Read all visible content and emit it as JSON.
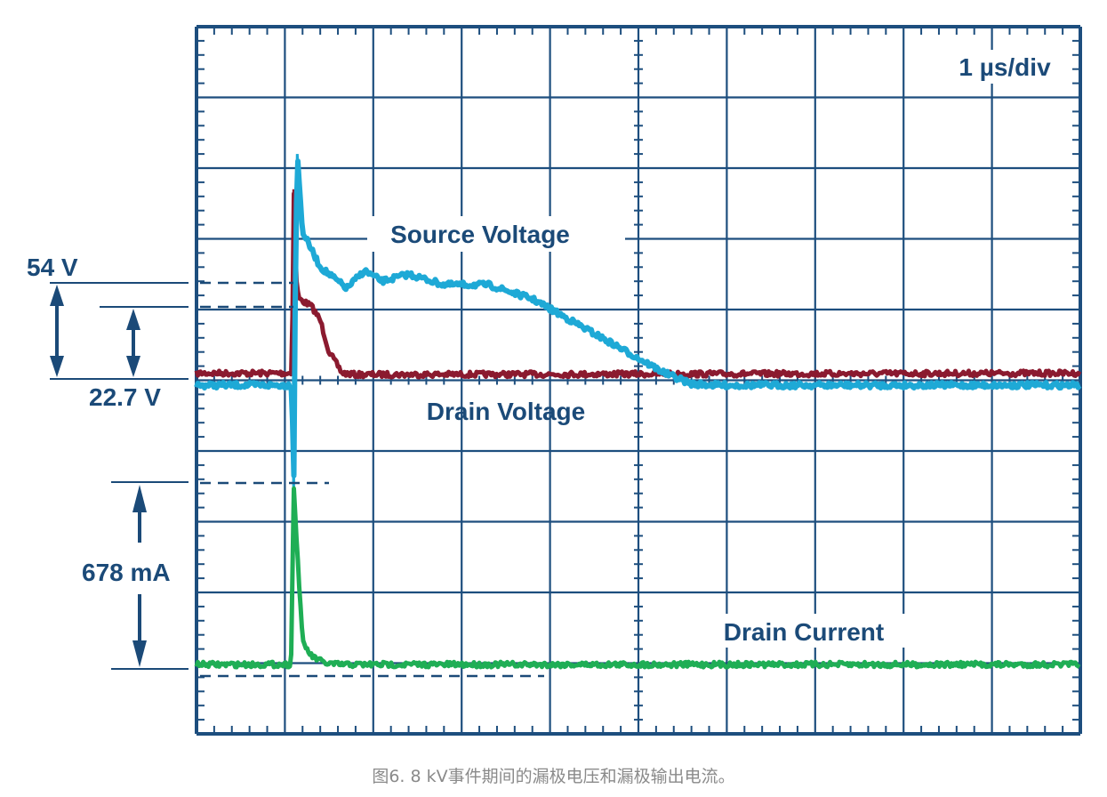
{
  "chart_data": {
    "type": "line",
    "title": "",
    "timebase_label": "1 µs/div",
    "x_divisions": 10,
    "y_divisions": 10,
    "xlim_us": [
      0,
      10
    ],
    "grid": true,
    "colors": {
      "grid": "#1d4e7e",
      "source_voltage": "#1ea9d6",
      "drain_voltage": "#8b1a2f",
      "drain_current": "#1fae55",
      "annotation": "#1b4a78"
    },
    "series": [
      {
        "name": "Source Voltage",
        "unit_y": "div",
        "x": [
          0,
          1.08,
          1.1,
          1.12,
          1.14,
          1.2,
          1.4,
          1.7,
          1.9,
          2.1,
          2.4,
          2.8,
          3.3,
          3.8,
          4.3,
          4.8,
          5.3,
          5.6,
          5.9,
          10
        ],
        "y": [
          5.07,
          5.07,
          6.6,
          3.4,
          1.8,
          2.9,
          3.4,
          3.7,
          3.45,
          3.6,
          3.5,
          3.65,
          3.65,
          3.85,
          4.2,
          4.55,
          4.9,
          5.05,
          5.07,
          5.07
        ]
      },
      {
        "name": "Drain Voltage",
        "unit_y": "div",
        "x": [
          0,
          1.08,
          1.1,
          1.13,
          1.16,
          1.3,
          1.4,
          1.5,
          1.65,
          1.8,
          10
        ],
        "y": [
          4.9,
          4.9,
          2.3,
          3.6,
          3.85,
          3.95,
          4.15,
          4.6,
          4.9,
          4.92,
          4.9
        ],
        "label": "Drain Voltage"
      },
      {
        "name": "Drain Current",
        "unit_y": "div",
        "x": [
          0,
          1.07,
          1.1,
          1.13,
          1.2,
          1.3,
          1.45,
          1.6,
          10
        ],
        "y": [
          9.02,
          9.02,
          6.5,
          7.2,
          8.7,
          8.9,
          9.0,
          9.02,
          9.02
        ]
      }
    ],
    "annotations": {
      "source_peak_delta": "54 V",
      "drain_peak_delta": "22.7 V",
      "current_peak_delta": "678 mA"
    },
    "labels": {
      "source_voltage": "Source Voltage",
      "drain_voltage": "Drain Voltage",
      "drain_current": "Drain Current"
    }
  },
  "caption": "图6. 8 kV事件期间的漏极电压和漏极输出电流。"
}
